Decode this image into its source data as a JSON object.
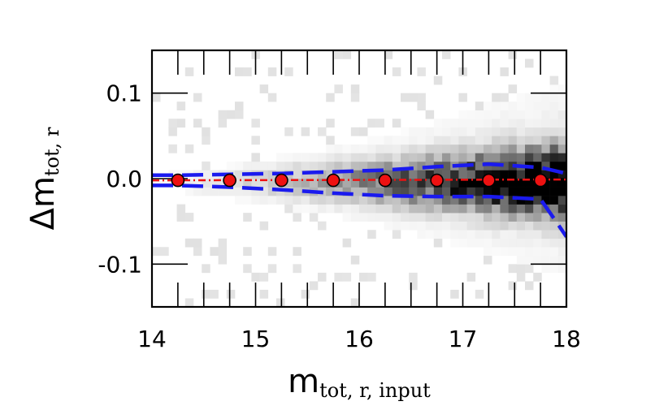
{
  "chart_data": {
    "type": "scatter",
    "title": "",
    "xlabel": {
      "main": "m",
      "sub": "tot, r, input"
    },
    "ylabel": {
      "main": "Δm",
      "sub": "tot, r"
    },
    "xlim": [
      14.0,
      18.0
    ],
    "ylim": [
      -0.15,
      0.15
    ],
    "xticks": [
      14,
      15,
      16,
      17,
      18
    ],
    "xtick_labels": [
      "14",
      "15",
      "16",
      "17",
      "18"
    ],
    "yticks": [
      0.1,
      0.0,
      -0.1
    ],
    "ytick_labels": [
      "0.1",
      "0.0",
      "-0.1"
    ],
    "grid": false,
    "points": {
      "x": [
        14.25,
        14.75,
        15.25,
        15.75,
        16.25,
        16.75,
        17.25,
        17.75
      ],
      "y": [
        -0.002,
        -0.002,
        -0.002,
        -0.002,
        -0.002,
        -0.002,
        -0.002,
        -0.002
      ],
      "color": "#ee1111"
    },
    "median_line": {
      "x": [
        14.0,
        18.0
      ],
      "y": [
        -0.002,
        -0.001
      ],
      "color": "#ee1111"
    },
    "scatter_band": {
      "color": "#1a1aee",
      "upper": {
        "x": [
          14.0,
          14.25,
          14.75,
          15.25,
          15.75,
          16.25,
          16.75,
          17.25,
          17.75,
          18.0
        ],
        "y": [
          0.004,
          0.004,
          0.005,
          0.006,
          0.008,
          0.01,
          0.014,
          0.017,
          0.013,
          0.006
        ]
      },
      "lower": {
        "x": [
          14.0,
          14.25,
          14.75,
          15.25,
          15.75,
          16.25,
          16.75,
          17.25,
          17.75,
          17.9,
          18.0
        ],
        "y": [
          -0.008,
          -0.008,
          -0.01,
          -0.013,
          -0.017,
          -0.02,
          -0.021,
          -0.021,
          -0.024,
          -0.05,
          -0.068
        ]
      }
    },
    "density": {
      "x_range": [
        14.0,
        18.0
      ],
      "y_range": [
        -0.15,
        0.15
      ],
      "nx": 50,
      "ny": 30,
      "colormap": "greys"
    }
  }
}
